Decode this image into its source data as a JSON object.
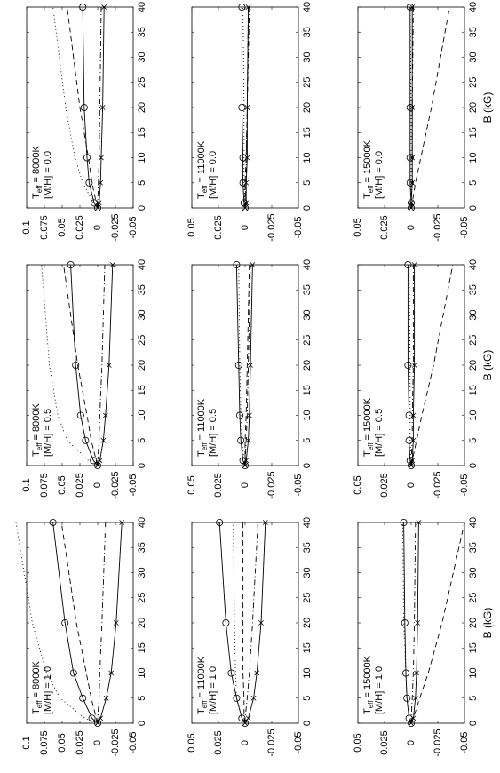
{
  "chart_data": {
    "type": "line",
    "orientation": "rotated 90 degrees counter-clockwise",
    "layout": "3 columns (metallicity) x 3 rows (effective temperature)",
    "x_axis": {
      "label": "B (kG)",
      "range": [
        0,
        40
      ],
      "ticks": [
        "0",
        "5",
        "10",
        "15",
        "20",
        "25",
        "30",
        "35",
        "40"
      ]
    },
    "y_axis_top": {
      "range": [
        -0.05,
        0.1
      ],
      "ticks": [
        "-0.05",
        "-0.025",
        "0",
        "0.025",
        "0.05",
        "0.075",
        "0.1"
      ]
    },
    "y_axis_rest": {
      "range": [
        -0.05,
        0.05
      ],
      "ticks": [
        "-0.05",
        "-0.025",
        "0",
        "0.025",
        "0.05"
      ]
    },
    "x": [
      0,
      1,
      5,
      10,
      20,
      40
    ],
    "series_styles": [
      {
        "key": "circles",
        "line": "solid",
        "marker": "o"
      },
      {
        "key": "crosses",
        "line": "solid",
        "marker": "x"
      },
      {
        "key": "dashed",
        "line": "dashed",
        "marker": ""
      },
      {
        "key": "dotted",
        "line": "dotted",
        "marker": ""
      },
      {
        "key": "dashdot",
        "line": "dashdot",
        "marker": ""
      }
    ],
    "panels": [
      {
        "col": 0,
        "row": 0,
        "teff_label": "T",
        "teff_sub": "eff",
        "teff_value": "  =  8000K",
        "mh_label": "[M/H] = 0.0",
        "circles": [
          0,
          0.005,
          0.012,
          0.015,
          0.019,
          0.021
        ],
        "crosses": [
          0,
          -0.002,
          -0.004,
          -0.005,
          -0.007,
          -0.009
        ],
        "dashed": [
          0,
          0.002,
          0.008,
          0.013,
          0.025,
          0.043
        ],
        "dotted": [
          0,
          0.006,
          0.021,
          0.032,
          0.045,
          0.063
        ],
        "dashdot": [
          0,
          0,
          -0.001,
          -0.002,
          -0.003,
          -0.005
        ]
      },
      {
        "col": 1,
        "row": 0,
        "teff_label": "T",
        "teff_sub": "eff",
        "teff_value": "  =  8000K",
        "mh_label": "[M/H] = 0.5",
        "circles": [
          0,
          0.006,
          0.017,
          0.024,
          0.031,
          0.038
        ],
        "crosses": [
          0,
          -0.003,
          -0.008,
          -0.011,
          -0.016,
          -0.021
        ],
        "dashed": [
          0,
          0.002,
          0.009,
          0.015,
          0.028,
          0.048
        ],
        "dotted": [
          0,
          0.013,
          0.043,
          0.056,
          0.068,
          0.079
        ],
        "dashdot": [
          0,
          0,
          -0.002,
          -0.003,
          -0.006,
          -0.01
        ]
      },
      {
        "col": 2,
        "row": 0,
        "teff_label": "T",
        "teff_sub": "eff",
        "teff_value": "  =  8000K",
        "mh_label": "[M/H] = 1.0",
        "circles": [
          0,
          0.008,
          0.021,
          0.034,
          0.046,
          0.063
        ],
        "crosses": [
          0,
          -0.004,
          -0.012,
          -0.019,
          -0.026,
          -0.034
        ],
        "dashed": [
          0,
          0.002,
          0.009,
          0.016,
          0.03,
          0.051
        ],
        "dotted": [
          0,
          0.018,
          0.053,
          0.072,
          0.092,
          0.115
        ],
        "dashdot": [
          0,
          0,
          -0.002,
          -0.003,
          -0.006,
          -0.011
        ]
      },
      {
        "col": 0,
        "row": 1,
        "teff_label": "T",
        "teff_sub": "eff",
        "teff_value": "  = 11000K",
        "mh_label": "[M/H] = 0.0",
        "circles": [
          0,
          0.001,
          0.002,
          0.002,
          0.003,
          0.003
        ],
        "crosses": [
          0,
          -0.001,
          -0.001,
          -0.002,
          -0.002,
          -0.003
        ],
        "dashed": [
          0,
          0,
          0,
          -0.001,
          -0.002,
          -0.003
        ],
        "dotted": [
          0,
          0,
          0.001,
          0.001,
          0.001,
          0.002
        ],
        "dashdot": [
          0,
          0,
          -0.001,
          -0.001,
          -0.002,
          -0.004
        ]
      },
      {
        "col": 1,
        "row": 1,
        "teff_label": "T",
        "teff_sub": "eff",
        "teff_value": "  = 11000K",
        "mh_label": "[M/H] = 0.5",
        "circles": [
          0,
          0.002,
          0.004,
          0.005,
          0.006,
          0.008
        ],
        "crosses": [
          0,
          -0.001,
          -0.003,
          -0.004,
          -0.005,
          -0.007
        ],
        "dashed": [
          0,
          0,
          0,
          -0.001,
          -0.002,
          -0.004
        ],
        "dotted": [
          0,
          0.001,
          0.003,
          0.004,
          0.005,
          0.006
        ],
        "dashdot": [
          0,
          0,
          -0.001,
          -0.002,
          -0.003,
          -0.005
        ]
      },
      {
        "col": 2,
        "row": 1,
        "teff_label": "T",
        "teff_sub": "eff",
        "teff_value": "  = 11000K",
        "mh_label": "[M/H] = 1.0",
        "circles": [
          0,
          0.003,
          0.008,
          0.013,
          0.018,
          0.024
        ],
        "crosses": [
          0,
          -0.003,
          -0.008,
          -0.011,
          -0.015,
          -0.019
        ],
        "dashed": [
          0,
          0.001,
          0.001,
          0.002,
          0.002,
          0.002
        ],
        "dotted": [
          0,
          0.003,
          0.008,
          0.009,
          0.01,
          0.011
        ],
        "dashdot": [
          0,
          0,
          -0.002,
          -0.004,
          -0.007,
          -0.012
        ]
      },
      {
        "col": 0,
        "row": 2,
        "teff_label": "T",
        "teff_sub": "eff",
        "teff_value": "  = 15000K",
        "mh_label": "[M/H] = 0.0",
        "circles": [
          0,
          0,
          0.001,
          0.001,
          0.001,
          0.001
        ],
        "crosses": [
          0,
          0,
          -0.001,
          -0.001,
          -0.001,
          -0.001
        ],
        "dashed": [
          0,
          -0.001,
          -0.004,
          -0.009,
          -0.019,
          -0.036
        ],
        "dotted": [
          0,
          0,
          0,
          0,
          0,
          0.001
        ],
        "dashdot": [
          0,
          0,
          -0.001,
          -0.001,
          -0.001,
          -0.002
        ]
      },
      {
        "col": 1,
        "row": 2,
        "teff_label": "T",
        "teff_sub": "eff",
        "teff_value": "  = 15000K",
        "mh_label": "[M/H] = 0.5",
        "circles": [
          0,
          0.001,
          0.002,
          0.002,
          0.003,
          0.003
        ],
        "crosses": [
          0,
          -0.001,
          -0.002,
          -0.002,
          -0.003,
          -0.003
        ],
        "dashed": [
          0,
          -0.001,
          -0.005,
          -0.01,
          -0.021,
          -0.039
        ],
        "dotted": [
          0,
          0,
          0.001,
          0.001,
          0.001,
          0.002
        ],
        "dashdot": [
          0,
          0,
          -0.001,
          -0.001,
          -0.002,
          -0.002
        ]
      },
      {
        "col": 2,
        "row": 2,
        "teff_label": "T",
        "teff_sub": "eff",
        "teff_value": "  = 15000K",
        "mh_label": "[M/H] = 1.0",
        "circles": [
          0,
          0.002,
          0.004,
          0.005,
          0.006,
          0.007
        ],
        "crosses": [
          0,
          -0.002,
          -0.004,
          -0.005,
          -0.006,
          -0.007
        ],
        "dashed": [
          0,
          -0.002,
          -0.008,
          -0.016,
          -0.029,
          -0.05
        ],
        "dotted": [
          0,
          0.002,
          0.004,
          0.005,
          0.007,
          0.008
        ],
        "dashdot": [
          0,
          0,
          -0.001,
          -0.002,
          -0.003,
          -0.004
        ]
      }
    ]
  }
}
